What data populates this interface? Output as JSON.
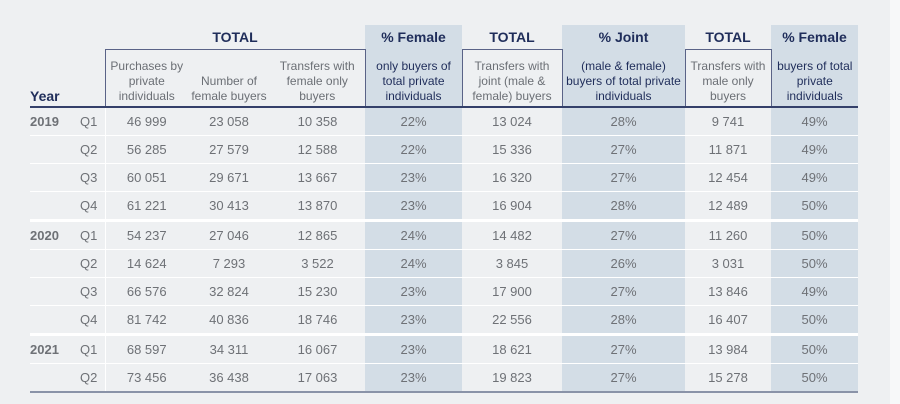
{
  "header": {
    "year_label": "Year",
    "groups": [
      {
        "title": "TOTAL",
        "subs": [
          "Purchases by private individuals",
          "Number of female buyers",
          "Transfers with female only buyers"
        ]
      },
      {
        "title": "% Female",
        "subs": [
          "only buyers of total private individuals"
        ]
      },
      {
        "title": "TOTAL",
        "subs": [
          "Transfers with joint (male & female) buyers"
        ]
      },
      {
        "title": "% Joint",
        "subs": [
          "(male & female) buyers of total private individuals"
        ]
      },
      {
        "title": "TOTAL",
        "subs": [
          "Transfers with male only buyers"
        ]
      },
      {
        "title": "% Female",
        "subs": [
          "buyers of total private individuals"
        ]
      }
    ]
  },
  "rows": [
    {
      "year": "2019",
      "q": "Q1",
      "v": [
        "46 999",
        "23 058",
        "10 358",
        "22%",
        "13 024",
        "28%",
        "9 741",
        "49%"
      ]
    },
    {
      "year": "",
      "q": "Q2",
      "v": [
        "56 285",
        "27 579",
        "12 588",
        "22%",
        "15 336",
        "27%",
        "11 871",
        "49%"
      ]
    },
    {
      "year": "",
      "q": "Q3",
      "v": [
        "60 051",
        "29 671",
        "13 667",
        "23%",
        "16 320",
        "27%",
        "12 454",
        "49%"
      ]
    },
    {
      "year": "",
      "q": "Q4",
      "v": [
        "61 221",
        "30 413",
        "13 870",
        "23%",
        "16 904",
        "28%",
        "12 489",
        "50%"
      ]
    },
    {
      "year": "2020",
      "q": "Q1",
      "v": [
        "54 237",
        "27 046",
        "12 865",
        "24%",
        "14 482",
        "27%",
        "11 260",
        "50%"
      ]
    },
    {
      "year": "",
      "q": "Q2",
      "v": [
        "14 624",
        "7 293",
        "3 522",
        "24%",
        "3 845",
        "26%",
        "3 031",
        "50%"
      ]
    },
    {
      "year": "",
      "q": "Q3",
      "v": [
        "66 576",
        "32 824",
        "15 230",
        "23%",
        "17 900",
        "27%",
        "13 846",
        "49%"
      ]
    },
    {
      "year": "",
      "q": "Q4",
      "v": [
        "81 742",
        "40 836",
        "18 746",
        "23%",
        "22 556",
        "28%",
        "16 407",
        "50%"
      ]
    },
    {
      "year": "2021",
      "q": "Q1",
      "v": [
        "68 597",
        "34 311",
        "16 067",
        "23%",
        "18 621",
        "27%",
        "13 984",
        "50%"
      ]
    },
    {
      "year": "",
      "q": "Q2",
      "v": [
        "73 456",
        "36 438",
        "17 063",
        "23%",
        "19 823",
        "27%",
        "15 278",
        "50%"
      ]
    }
  ]
}
